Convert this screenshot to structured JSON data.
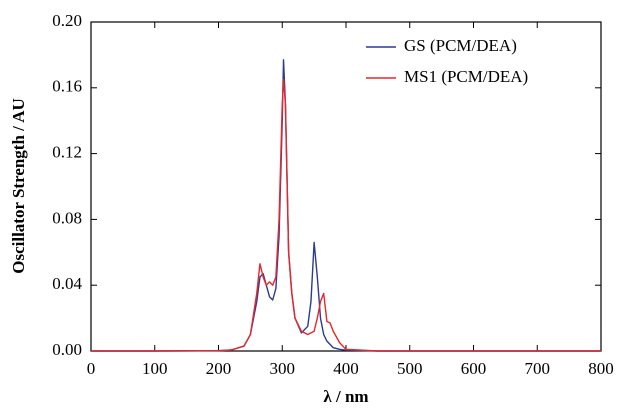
{
  "chart_data": {
    "type": "line",
    "xlabel": "λ / nm",
    "ylabel": "Oscillator Strength / AU",
    "x": [
      0,
      100,
      200,
      220,
      240,
      250,
      260,
      265,
      270,
      275,
      280,
      285,
      290,
      295,
      300,
      302,
      305,
      310,
      315,
      320,
      330,
      340,
      345,
      350,
      355,
      360,
      365,
      370,
      375,
      380,
      390,
      400,
      450,
      500,
      800
    ],
    "series": [
      {
        "name": "GS (PCM/DEA)",
        "color": "#2b3b8f",
        "values": [
          0,
          0,
          0.0002,
          0.0006,
          0.003,
          0.01,
          0.03,
          0.045,
          0.047,
          0.04,
          0.033,
          0.031,
          0.038,
          0.07,
          0.14,
          0.177,
          0.15,
          0.06,
          0.035,
          0.02,
          0.011,
          0.015,
          0.03,
          0.066,
          0.045,
          0.02,
          0.01,
          0.006,
          0.004,
          0.002,
          0.001,
          0.0005,
          0,
          0,
          0
        ]
      },
      {
        "name": "MS1 (PCM/DEA)",
        "color": "#e8262a",
        "values": [
          0,
          0,
          0.0002,
          0.0006,
          0.003,
          0.01,
          0.035,
          0.053,
          0.045,
          0.04,
          0.042,
          0.04,
          0.045,
          0.08,
          0.15,
          0.165,
          0.15,
          0.06,
          0.035,
          0.02,
          0.012,
          0.01,
          0.011,
          0.012,
          0.02,
          0.03,
          0.035,
          0.018,
          0.017,
          0.012,
          0.005,
          0.001,
          0,
          0,
          0
        ]
      }
    ],
    "xlim": [
      0,
      800
    ],
    "xticks": [
      0,
      100,
      200,
      300,
      400,
      500,
      600,
      700,
      800
    ],
    "ylim": [
      0,
      0.2
    ],
    "yticks": [
      {
        "value": 0,
        "label": "0.00"
      },
      {
        "value": 0.04,
        "label": "0.04"
      },
      {
        "value": 0.08,
        "label": "0.08"
      },
      {
        "value": 0.12,
        "label": "0.12"
      },
      {
        "value": 0.16,
        "label": "0.16"
      },
      {
        "value": 0.2,
        "label": "0.20"
      }
    ],
    "grid": false,
    "legend": "upper right"
  }
}
